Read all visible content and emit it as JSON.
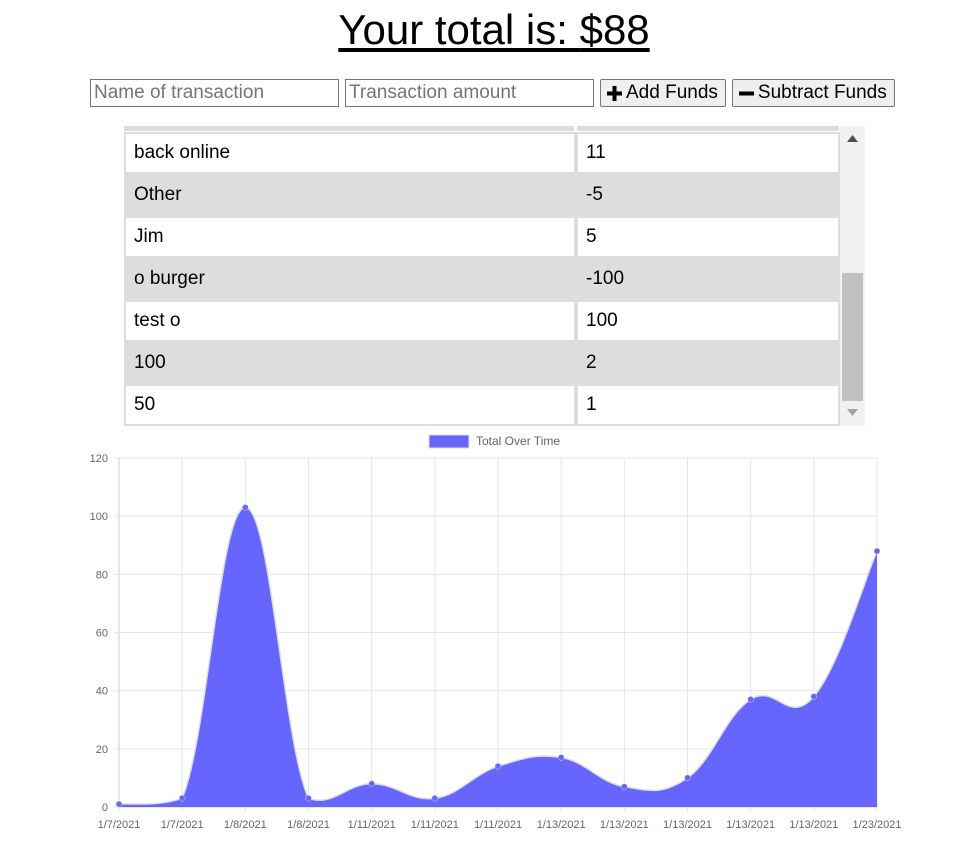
{
  "header": {
    "prefix": "Your total is: ",
    "total": "$88"
  },
  "form": {
    "name_placeholder": "Name of transaction",
    "amount_placeholder": "Transaction amount",
    "add_label": "Add Funds",
    "subtract_label": "Subtract Funds"
  },
  "transactions": [
    {
      "name": "back online",
      "value": "11"
    },
    {
      "name": "Other",
      "value": "-5"
    },
    {
      "name": "Jim",
      "value": "5"
    },
    {
      "name": "o burger",
      "value": "-100"
    },
    {
      "name": "test o",
      "value": "100"
    },
    {
      "name": "100",
      "value": "2"
    },
    {
      "name": "50",
      "value": "1"
    }
  ],
  "colors": {
    "series_fill": "#6666ff",
    "series_line": "#dddddd",
    "point": "#6666ff",
    "grid": "#e6e6e6",
    "row_alt": "#dddddd"
  },
  "chart_data": {
    "type": "area",
    "categories": [
      "1/7/2021",
      "1/7/2021",
      "1/8/2021",
      "1/8/2021",
      "1/11/2021",
      "1/11/2021",
      "1/11/2021",
      "1/13/2021",
      "1/13/2021",
      "1/13/2021",
      "1/13/2021",
      "1/13/2021",
      "1/23/2021"
    ],
    "series": [
      {
        "name": "Total Over Time",
        "values": [
          1,
          3,
          103,
          3,
          8,
          3,
          14,
          17,
          7,
          10,
          37,
          38,
          88
        ]
      }
    ],
    "ylim": [
      0,
      120
    ],
    "yticks": [
      0,
      20,
      40,
      60,
      80,
      100,
      120
    ],
    "legend": "top-center",
    "grid": true,
    "title": "",
    "xlabel": "",
    "ylabel": ""
  }
}
